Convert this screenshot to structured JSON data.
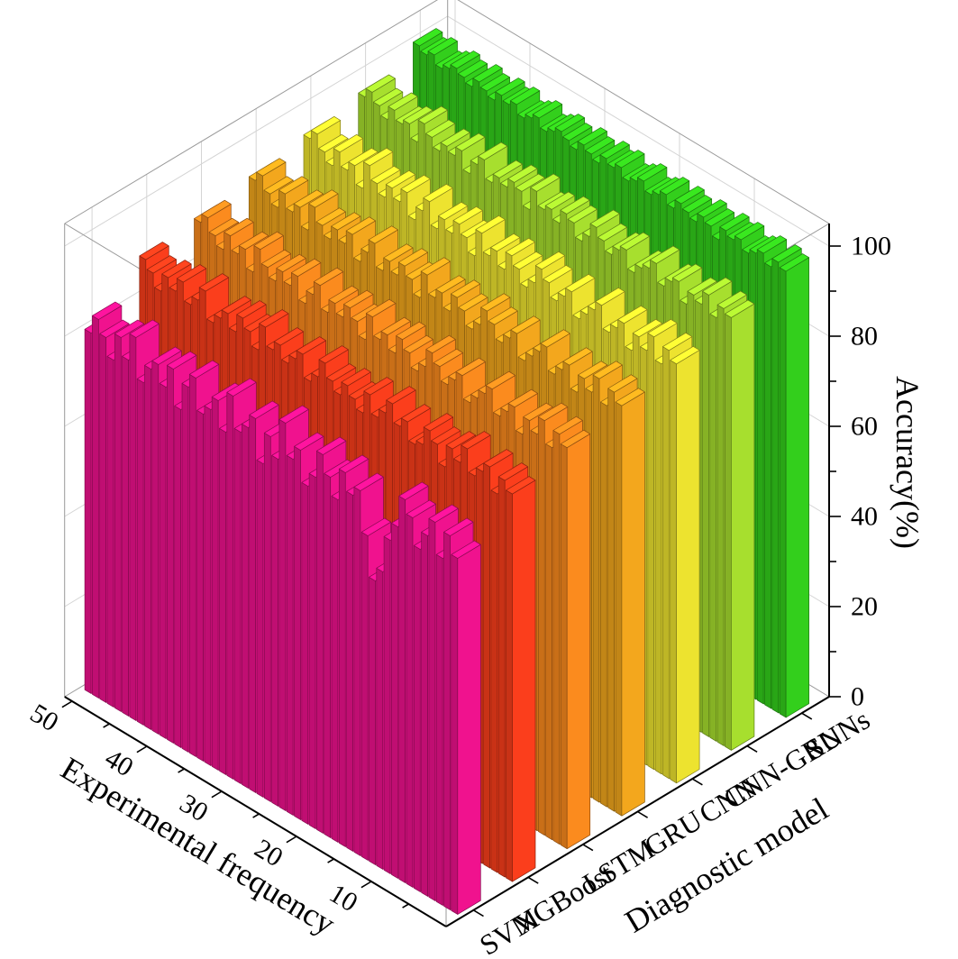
{
  "chart_data": {
    "type": "bar",
    "subtype": "3d-column",
    "title": "",
    "x_axis": {
      "label": "Experimental frequency",
      "ticks": [
        10,
        20,
        30,
        40,
        50
      ],
      "range": [
        1,
        50
      ]
    },
    "y_axis": {
      "label": "Diagnostic model",
      "categories": [
        "SVM",
        "XGBoost",
        "LSTM",
        "GRU",
        "CNN",
        "CNN-GRU",
        "SNNs"
      ]
    },
    "z_axis": {
      "label": "Accuracy(%)",
      "ticks": [
        0,
        20,
        40,
        60,
        80,
        100
      ],
      "range": [
        0,
        105
      ]
    },
    "grid": true,
    "grid_color": "#d4d4d4",
    "frame_color": "#9a9a9a",
    "axis_color": "#000000",
    "background": "#ffffff",
    "series": [
      {
        "name": "SVM",
        "color": "#F0128E",
        "values": [
          79,
          83,
          77,
          84,
          80,
          76,
          82,
          85,
          78,
          74,
          66,
          63,
          72,
          81,
          79,
          83,
          76,
          80,
          84,
          78,
          75,
          82,
          79,
          86,
          77,
          81,
          74,
          83,
          80,
          78,
          85,
          76,
          82,
          79,
          77,
          84,
          81,
          75,
          83,
          78,
          82,
          80,
          76,
          85,
          79,
          83,
          77,
          81,
          84,
          80
        ]
      },
      {
        "name": "XGBoost",
        "color": "#FB3E1C",
        "values": [
          86,
          88,
          84,
          89,
          87,
          85,
          90,
          86,
          88,
          83,
          87,
          89,
          85,
          84,
          88,
          86,
          90,
          87,
          85,
          89,
          84,
          86,
          88,
          85,
          87,
          90,
          86,
          84,
          89,
          87,
          85,
          88,
          86,
          90,
          84,
          87,
          89,
          85,
          88,
          86,
          84,
          90,
          87,
          85,
          89,
          86,
          88,
          84,
          87,
          89
        ]
      },
      {
        "name": "LSTM",
        "color": "#FB8B1E",
        "values": [
          89,
          91,
          87,
          92,
          88,
          90,
          86,
          91,
          89,
          87,
          92,
          90,
          88,
          86,
          91,
          89,
          87,
          90,
          92,
          88,
          86,
          89,
          91,
          87,
          90,
          88,
          92,
          86,
          89,
          91,
          88,
          90,
          87,
          92,
          89,
          86,
          91,
          88,
          90,
          87,
          89,
          92,
          86,
          90,
          88,
          91,
          87,
          89,
          92,
          90
        ]
      },
      {
        "name": "GRU",
        "color": "#F3A71D",
        "values": [
          91,
          93,
          89,
          94,
          90,
          92,
          88,
          93,
          91,
          89,
          94,
          92,
          90,
          88,
          93,
          91,
          89,
          92,
          94,
          90,
          88,
          91,
          93,
          89,
          92,
          90,
          94,
          88,
          91,
          93,
          90,
          92,
          89,
          94,
          91,
          88,
          93,
          90,
          92,
          89,
          91,
          94,
          88,
          92,
          90,
          93,
          89,
          91,
          94,
          92
        ]
      },
      {
        "name": "CNN",
        "color": "#EDE32F",
        "values": [
          93,
          95,
          91,
          96,
          92,
          94,
          90,
          95,
          93,
          91,
          96,
          94,
          92,
          90,
          95,
          93,
          91,
          94,
          96,
          92,
          90,
          93,
          95,
          91,
          94,
          92,
          96,
          90,
          93,
          95,
          92,
          94,
          91,
          96,
          93,
          90,
          95,
          92,
          94,
          91,
          93,
          96,
          90,
          94,
          92,
          95,
          91,
          93,
          96,
          94
        ]
      },
      {
        "name": "CNN-GRU",
        "color": "#A7DF2E",
        "values": [
          96,
          97,
          94,
          98,
          95,
          96,
          93,
          97,
          96,
          94,
          98,
          96,
          95,
          93,
          97,
          96,
          94,
          96,
          98,
          95,
          93,
          96,
          97,
          94,
          96,
          95,
          98,
          93,
          96,
          97,
          95,
          96,
          94,
          98,
          96,
          93,
          97,
          95,
          96,
          94,
          96,
          98,
          93,
          96,
          95,
          97,
          94,
          96,
          98,
          96
        ]
      },
      {
        "name": "SNNs",
        "color": "#33CF1C",
        "values": [
          99,
          100,
          98,
          100,
          99,
          98,
          100,
          99,
          100,
          97,
          99,
          100,
          98,
          99,
          100,
          98,
          100,
          99,
          98,
          100,
          99,
          98,
          100,
          99,
          100,
          98,
          99,
          100,
          98,
          99,
          100,
          99,
          98,
          100,
          99,
          98,
          100,
          99,
          100,
          98,
          99,
          100,
          98,
          99,
          100,
          99,
          98,
          100,
          99,
          100
        ]
      }
    ]
  }
}
